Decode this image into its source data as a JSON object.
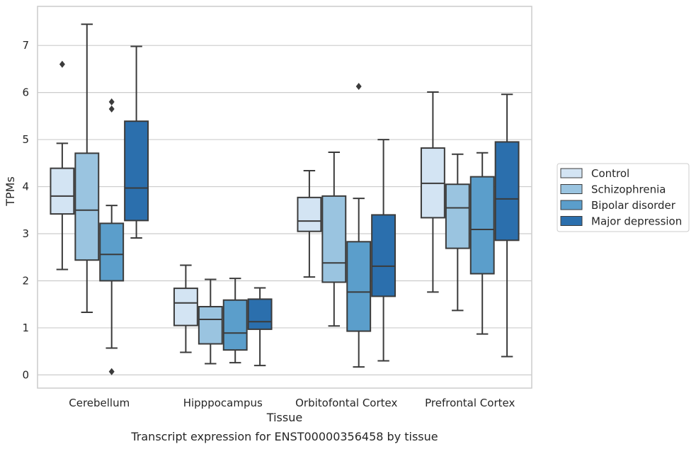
{
  "chart_data": {
    "type": "box",
    "caption": "Transcript expression for ENST00000356458 by tissue",
    "xlabel": "Tissue",
    "ylabel": "TPMs",
    "ylim": [
      -0.28,
      7.83
    ],
    "yticks": [
      0,
      1,
      2,
      3,
      4,
      5,
      6,
      7
    ],
    "grid": "horizontal",
    "legend_position": "right-center",
    "categories": [
      "Cerebellum",
      "Hipppocampus",
      "Orbitofontal Cortex",
      "Prefrontal Cortex"
    ],
    "series": [
      {
        "name": "Control",
        "color": "#d3e4f3",
        "boxes": [
          {
            "min": 2.24,
            "q1": 3.42,
            "median": 3.8,
            "q3": 4.39,
            "max": 4.92,
            "outliers": [
              6.6
            ]
          },
          {
            "min": 0.48,
            "q1": 1.05,
            "median": 1.53,
            "q3": 1.84,
            "max": 2.33,
            "outliers": []
          },
          {
            "min": 2.08,
            "q1": 3.05,
            "median": 3.27,
            "q3": 3.77,
            "max": 4.34,
            "outliers": []
          },
          {
            "min": 1.76,
            "q1": 3.34,
            "median": 4.07,
            "q3": 4.82,
            "max": 6.01,
            "outliers": []
          }
        ]
      },
      {
        "name": "Schizophrenia",
        "color": "#9ac4e0",
        "boxes": [
          {
            "min": 1.33,
            "q1": 2.44,
            "median": 3.5,
            "q3": 4.71,
            "max": 7.45,
            "outliers": []
          },
          {
            "min": 0.24,
            "q1": 0.66,
            "median": 1.18,
            "q3": 1.45,
            "max": 2.03,
            "outliers": []
          },
          {
            "min": 1.04,
            "q1": 1.97,
            "median": 2.38,
            "q3": 3.8,
            "max": 4.73,
            "outliers": []
          },
          {
            "min": 1.37,
            "q1": 2.69,
            "median": 3.55,
            "q3": 4.05,
            "max": 4.69,
            "outliers": []
          }
        ]
      },
      {
        "name": "Bipolar disorder",
        "color": "#5b9ecb",
        "boxes": [
          {
            "min": 0.57,
            "q1": 2.0,
            "median": 2.56,
            "q3": 3.22,
            "max": 3.6,
            "outliers": [
              5.65,
              5.8,
              0.07
            ]
          },
          {
            "min": 0.26,
            "q1": 0.53,
            "median": 0.89,
            "q3": 1.59,
            "max": 2.05,
            "outliers": []
          },
          {
            "min": 0.17,
            "q1": 0.93,
            "median": 1.76,
            "q3": 2.83,
            "max": 3.75,
            "outliers": [
              6.13
            ]
          },
          {
            "min": 0.87,
            "q1": 2.15,
            "median": 3.09,
            "q3": 4.21,
            "max": 4.72,
            "outliers": []
          }
        ]
      },
      {
        "name": "Major depression",
        "color": "#2b6fad",
        "boxes": [
          {
            "min": 2.91,
            "q1": 3.28,
            "median": 3.97,
            "q3": 5.39,
            "max": 6.98,
            "outliers": []
          },
          {
            "min": 0.2,
            "q1": 0.97,
            "median": 1.13,
            "q3": 1.61,
            "max": 1.85,
            "outliers": []
          },
          {
            "min": 0.3,
            "q1": 1.67,
            "median": 2.31,
            "q3": 3.4,
            "max": 5.0,
            "outliers": []
          },
          {
            "min": 0.39,
            "q1": 2.86,
            "median": 3.74,
            "q3": 4.95,
            "max": 5.96,
            "outliers": []
          }
        ]
      }
    ]
  }
}
